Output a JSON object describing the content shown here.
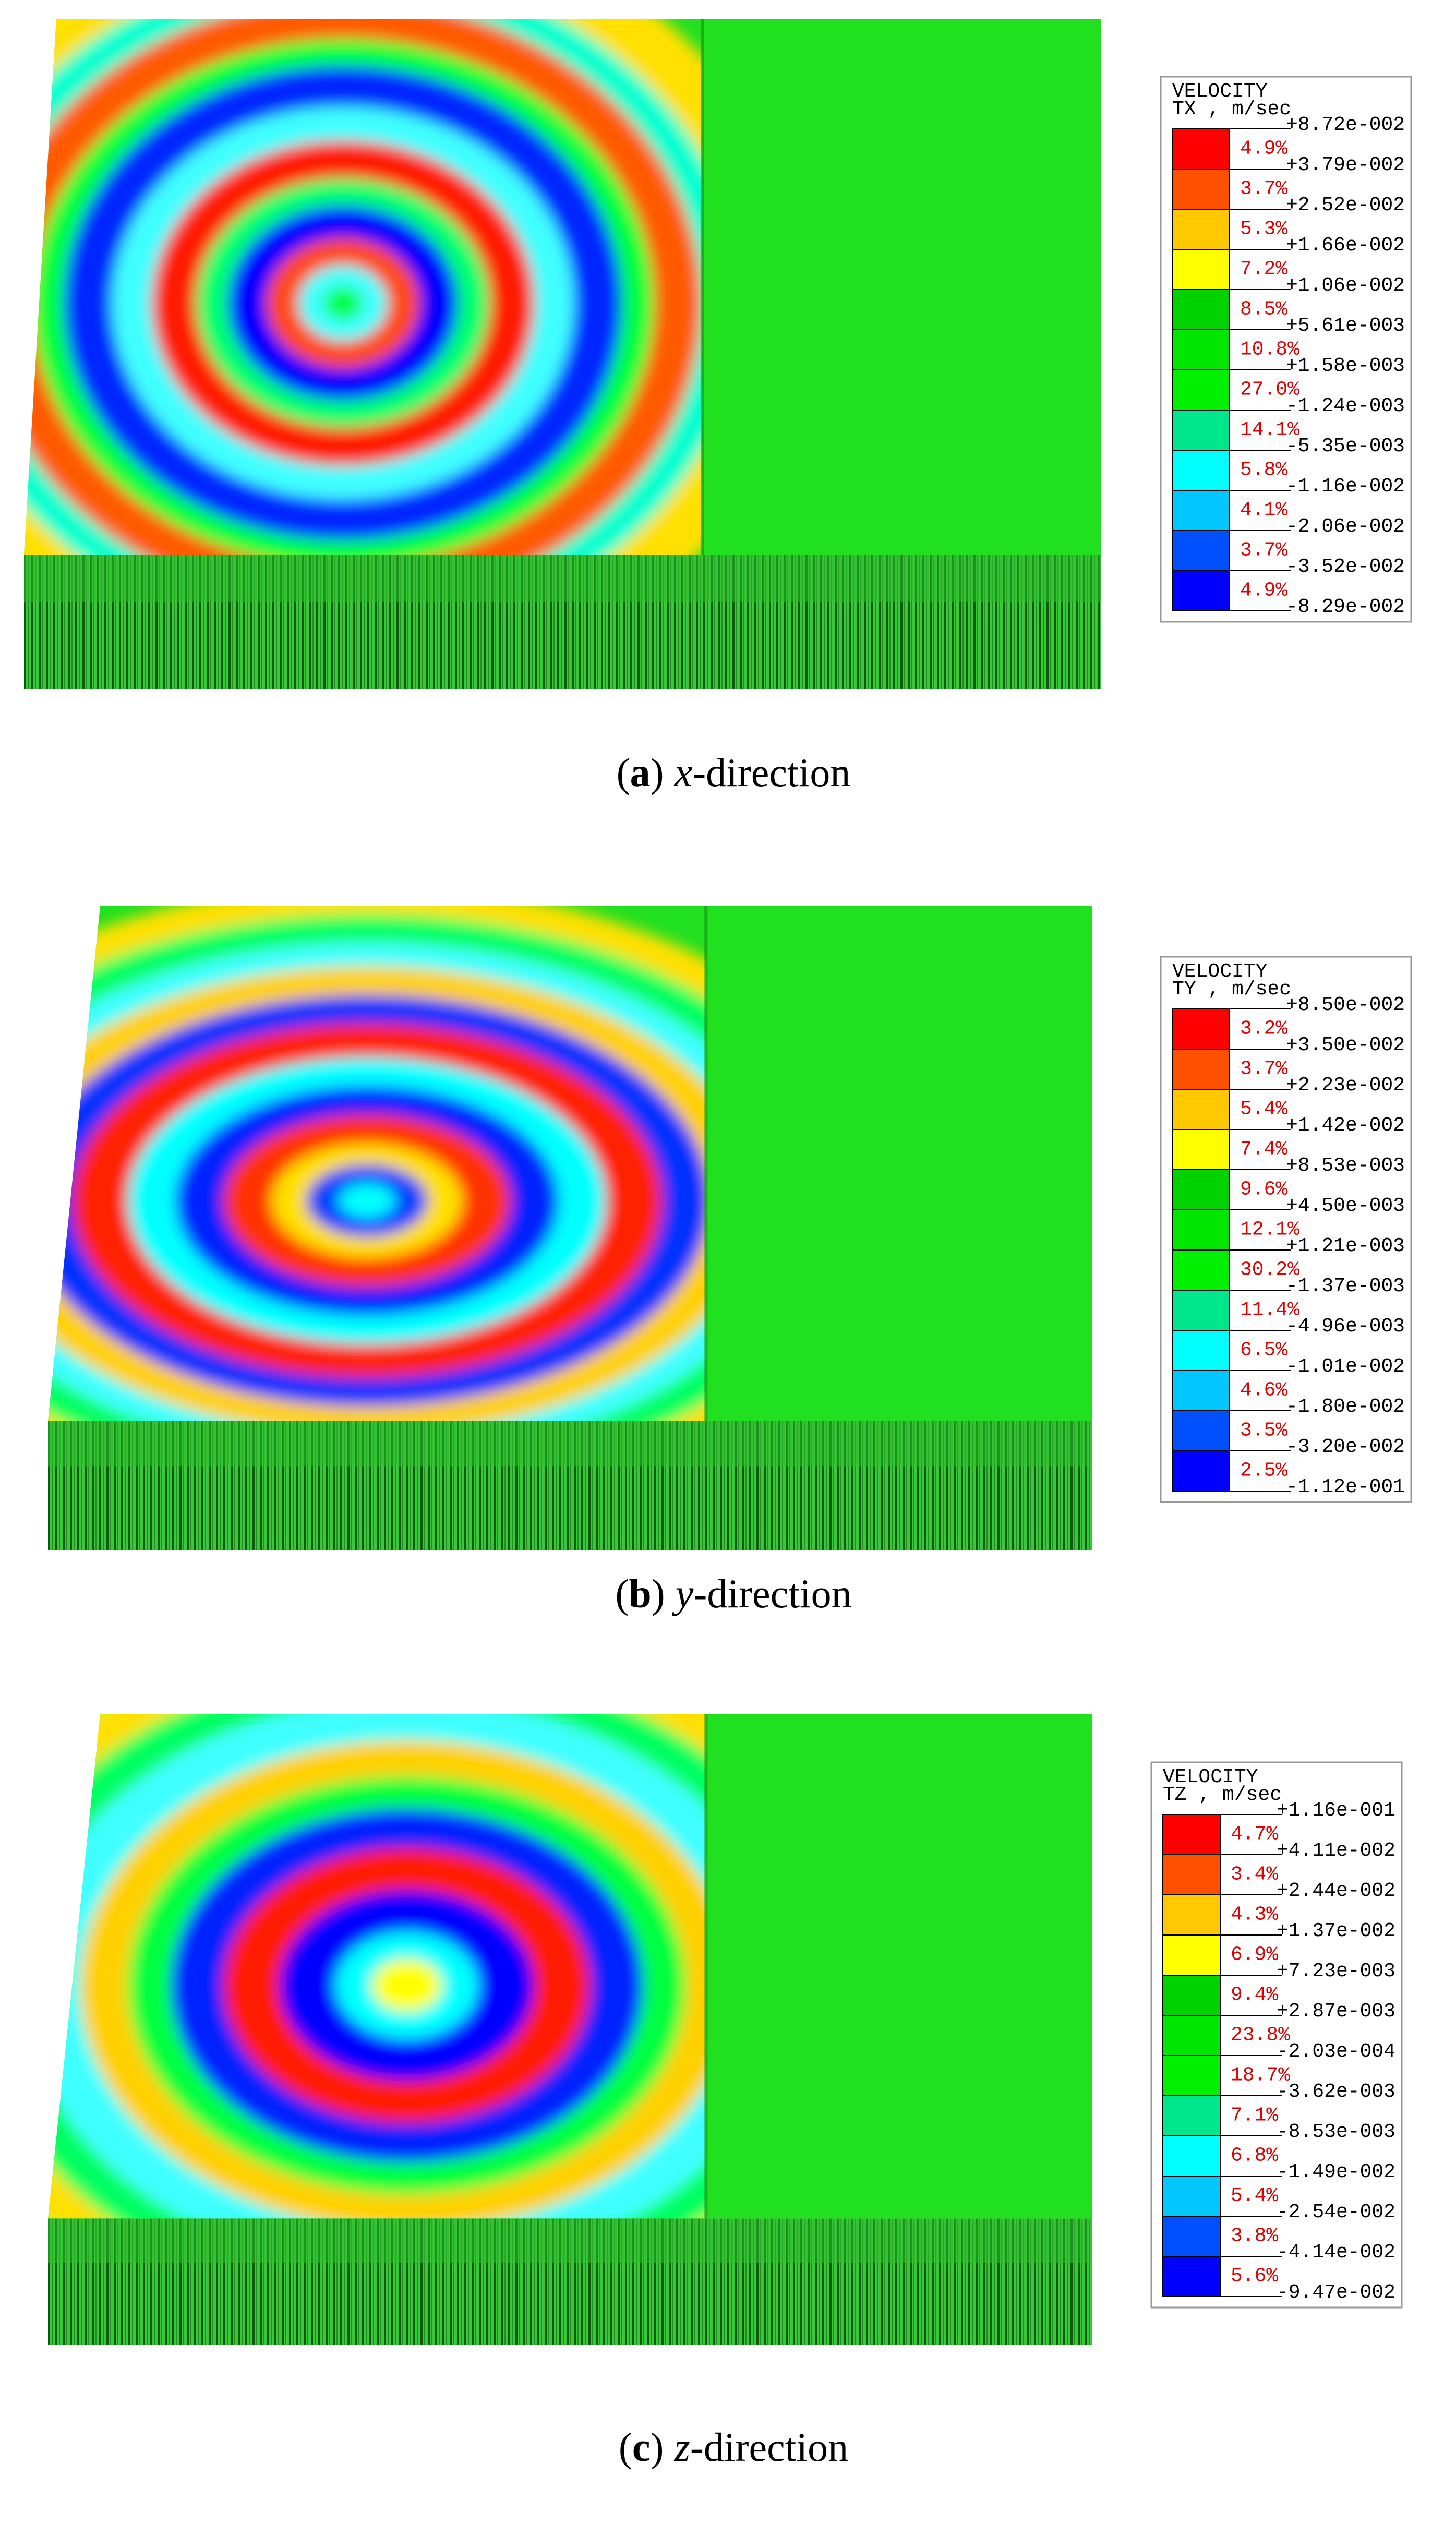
{
  "legend_colors": [
    "#ff0000",
    "#ff5000",
    "#ffc800",
    "#ffff00",
    "#00d200",
    "#00e600",
    "#00f000",
    "#00e68c",
    "#00ffff",
    "#00c8ff",
    "#0050ff",
    "#0000ff"
  ],
  "panels": [
    {
      "legend": {
        "title": "VELOCITY",
        "component": "TX , m/sec",
        "values": [
          "+8.72e-002",
          "+3.79e-002",
          "+2.52e-002",
          "+1.66e-002",
          "+1.06e-002",
          "+5.61e-003",
          "+1.58e-003",
          "-1.24e-003",
          "-5.35e-003",
          "-1.16e-002",
          "-2.06e-002",
          "-3.52e-002",
          "-8.29e-002"
        ],
        "percents": [
          "4.9%",
          "3.7%",
          "5.3%",
          "7.2%",
          "8.5%",
          "10.8%",
          "27.0%",
          "14.1%",
          "5.8%",
          "4.1%",
          "3.7%",
          "4.9%"
        ]
      },
      "caption": {
        "open": "(",
        "letter": "a",
        "close": ")",
        "axis": "x",
        "suffix": "-direction"
      }
    },
    {
      "legend": {
        "title": "VELOCITY",
        "component": "TY , m/sec",
        "values": [
          "+8.50e-002",
          "+3.50e-002",
          "+2.23e-002",
          "+1.42e-002",
          "+8.53e-003",
          "+4.50e-003",
          "+1.21e-003",
          "-1.37e-003",
          "-4.96e-003",
          "-1.01e-002",
          "-1.80e-002",
          "-3.20e-002",
          "-1.12e-001"
        ],
        "percents": [
          "3.2%",
          "3.7%",
          "5.4%",
          "7.4%",
          "9.6%",
          "12.1%",
          "30.2%",
          "11.4%",
          "6.5%",
          "4.6%",
          "3.5%",
          "2.5%"
        ]
      },
      "caption": {
        "open": "(",
        "letter": "b",
        "close": ")",
        "axis": "y",
        "suffix": "-direction"
      }
    },
    {
      "legend": {
        "title": "VELOCITY",
        "component": "TZ , m/sec",
        "values": [
          "+1.16e-001",
          "+4.11e-002",
          "+2.44e-002",
          "+1.37e-002",
          "+7.23e-003",
          "+2.87e-003",
          "-2.03e-004",
          "-3.62e-003",
          "-8.53e-003",
          "-1.49e-002",
          "-2.54e-002",
          "-4.14e-002",
          "-9.47e-002"
        ],
        "percents": [
          "4.7%",
          "3.4%",
          "4.3%",
          "6.9%",
          "9.4%",
          "23.8%",
          "18.7%",
          "7.1%",
          "6.8%",
          "5.4%",
          "3.8%",
          "5.6%"
        ]
      },
      "caption": {
        "open": "(",
        "letter": "c",
        "close": ")",
        "axis": "z",
        "suffix": "-direction"
      }
    }
  ]
}
